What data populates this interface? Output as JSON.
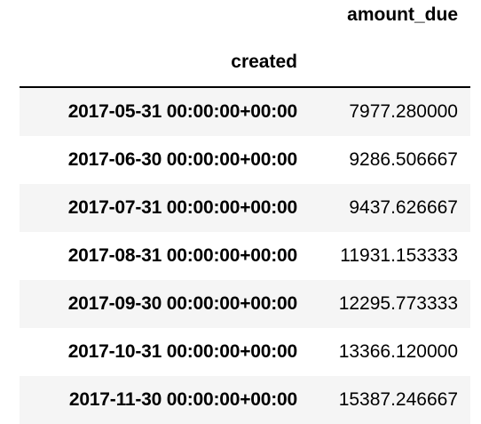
{
  "table": {
    "column_header": "amount_due",
    "index_name": "created",
    "rows": [
      {
        "created": "2017-05-31 00:00:00+00:00",
        "amount_due": "7977.280000"
      },
      {
        "created": "2017-06-30 00:00:00+00:00",
        "amount_due": "9286.506667"
      },
      {
        "created": "2017-07-31 00:00:00+00:00",
        "amount_due": "9437.626667"
      },
      {
        "created": "2017-08-31 00:00:00+00:00",
        "amount_due": "11931.153333"
      },
      {
        "created": "2017-09-30 00:00:00+00:00",
        "amount_due": "12295.773333"
      },
      {
        "created": "2017-10-31 00:00:00+00:00",
        "amount_due": "13366.120000"
      },
      {
        "created": "2017-11-30 00:00:00+00:00",
        "amount_due": "15387.246667"
      }
    ]
  },
  "colors": {
    "stripe": "#f5f5f5",
    "background": "#ffffff",
    "text": "#000000"
  }
}
